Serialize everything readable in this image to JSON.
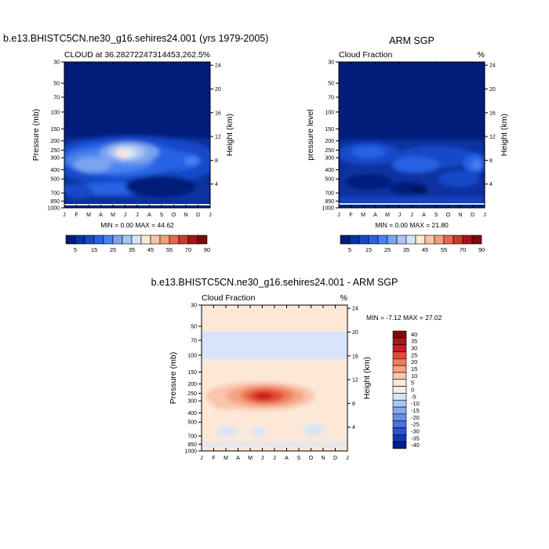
{
  "chart_data": [
    {
      "type": "heatmap",
      "title": "b.e13.BHISTC5CN.ne30_g16.sehires24.001 (yrs 1979-2005)",
      "subtitle_left": "CLOUD at 36.28272247314453,262.5",
      "subtitle_right": "%",
      "ylabel": "Pressure (mb)",
      "ylabel_right": "Height (km)",
      "x_ticks": [
        "J",
        "F",
        "M",
        "A",
        "M",
        "J",
        "J",
        "A",
        "S",
        "O",
        "N",
        "D",
        "J"
      ],
      "y_ticks": [
        "30",
        "50",
        "70",
        "100",
        "150",
        "200",
        "250",
        "300",
        "400",
        "500",
        "700",
        "850",
        "1000"
      ],
      "right_ticks": [
        "24",
        "20",
        "16",
        "12",
        "8",
        "4"
      ],
      "stats": "MIN =   0.00 MAX =  44.62",
      "min": 0.0,
      "max": 44.62,
      "colorbar_labels": [
        "5",
        "15",
        "25",
        "35",
        "45",
        "55",
        "70",
        "90"
      ],
      "features": [
        {
          "month": 5.8,
          "pressure": 250,
          "value": 42
        },
        {
          "month": 9.0,
          "pressure": 280,
          "value": 15
        },
        {
          "month": 2.5,
          "pressure": 320,
          "value": 22
        }
      ]
    },
    {
      "type": "heatmap",
      "title": "ARM SGP",
      "subtitle_left": "Cloud Fraction",
      "subtitle_right": "%",
      "ylabel": "pressure level",
      "ylabel_right": "Height (km)",
      "x_ticks": [
        "J",
        "F",
        "M",
        "A",
        "M",
        "J",
        "J",
        "A",
        "S",
        "O",
        "N",
        "D",
        "J"
      ],
      "y_ticks": [
        "30",
        "50",
        "70",
        "100",
        "150",
        "200",
        "250",
        "300",
        "400",
        "500",
        "700",
        "850",
        "1000"
      ],
      "right_ticks": [
        "24",
        "20",
        "16",
        "12",
        "8",
        "4"
      ],
      "stats": "MIN =   0.00 MAX =  21.80",
      "min": 0.0,
      "max": 21.8,
      "colorbar_labels": [
        "5",
        "15",
        "25",
        "35",
        "45",
        "55",
        "70",
        "90"
      ],
      "features": [
        {
          "month": 2.5,
          "pressure": 230,
          "value": 12
        },
        {
          "month": 9.5,
          "pressure": 250,
          "value": 10
        },
        {
          "month": 11.5,
          "pressure": 320,
          "value": 15
        }
      ]
    },
    {
      "type": "heatmap",
      "title": "b.e13.BHISTC5CN.ne30_g16.sehires24.001 - ARM SGP",
      "subtitle_left": "Cloud Fraction",
      "subtitle_right": "%",
      "ylabel": "Pressure (mb)",
      "ylabel_right": "Height (km)",
      "x_ticks": [
        "J",
        "F",
        "M",
        "A",
        "M",
        "J",
        "J",
        "A",
        "S",
        "O",
        "N",
        "D",
        "J"
      ],
      "y_ticks": [
        "30",
        "50",
        "70",
        "100",
        "150",
        "200",
        "250",
        "300",
        "400",
        "500",
        "700",
        "850",
        "1000"
      ],
      "right_ticks": [
        "24",
        "20",
        "16",
        "12",
        "8",
        "4"
      ],
      "stats": "MIN =  -7.12 MAX =  27.02",
      "min": -7.12,
      "max": 27.02,
      "colorbar_labels": [
        "40",
        "35",
        "30",
        "25",
        "20",
        "15",
        "10",
        "5",
        "0",
        "-5",
        "-10",
        "-15",
        "-20",
        "-25",
        "-30",
        "-35",
        "-40"
      ],
      "features": [
        {
          "month": 6.0,
          "pressure": 260,
          "value": 27
        },
        {
          "month": 2.5,
          "pressure": 260,
          "value": 10
        }
      ]
    }
  ],
  "colors": {
    "seq_scale": [
      "#021c7a",
      "#0a33a0",
      "#1449c9",
      "#2563e6",
      "#4883ef",
      "#7aa4f0",
      "#aac4f3",
      "#d6e5fa",
      "#fde8d8",
      "#f7c4a6",
      "#f19e7a",
      "#e06a51",
      "#c93a2b",
      "#a71617",
      "#7c0a0d"
    ],
    "diff_scale": [
      "#7c0a0d",
      "#a71617",
      "#c41e1e",
      "#e24a35",
      "#ef7a5c",
      "#f5a283",
      "#f9c5ad",
      "#fde8d8",
      "#fcecdc",
      "#d6e5fa",
      "#aac4f3",
      "#86a9ee",
      "#6a8fe8",
      "#4a72df",
      "#2c53d2",
      "#1436b4",
      "#031c8a"
    ]
  }
}
